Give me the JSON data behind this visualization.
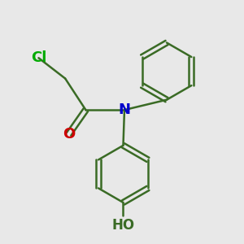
{
  "background_color": "#e8e8e8",
  "bond_color": "#3a6b25",
  "bond_width": 1.8,
  "atom_colors": {
    "Cl": "#00aa00",
    "O": "#cc0000",
    "N": "#0000cc",
    "HO": "#3a6b25"
  },
  "font_size_atoms": 13,
  "fig_width": 3.0,
  "fig_height": 3.0,
  "dpi": 100
}
